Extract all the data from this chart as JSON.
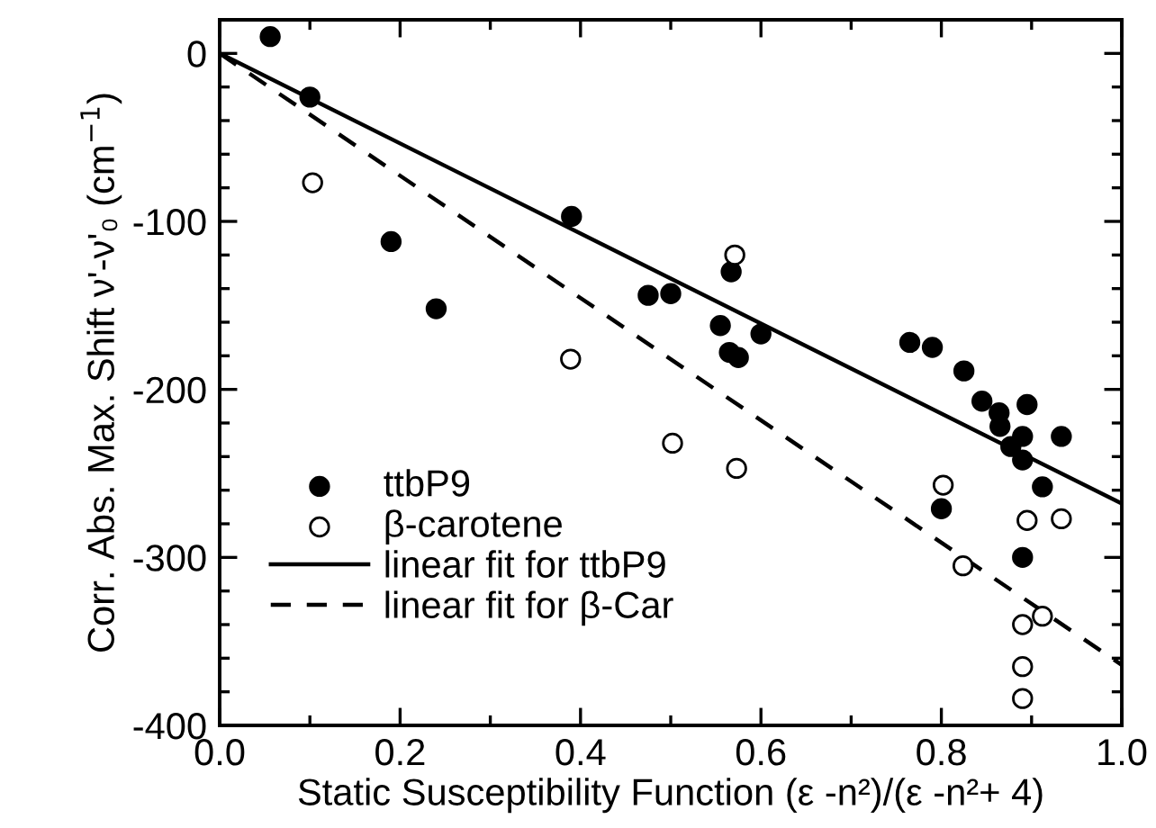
{
  "chart_data": {
    "type": "scatter",
    "xlabel": "Static Susceptibility Function (ε -n²)/(ε -n²+ 4)",
    "ylabel": "Corr. Abs. Max. Shift ν'-ν'₀ (cm$^{−1}$)",
    "xlim": [
      0.0,
      1.0
    ],
    "ylim": [
      -400,
      20
    ],
    "xticks": [
      {
        "value": 0.0,
        "label": "0.0"
      },
      {
        "value": 0.1,
        "label": null
      },
      {
        "value": 0.2,
        "label": "0.2"
      },
      {
        "value": 0.3,
        "label": null
      },
      {
        "value": 0.4,
        "label": "0.4"
      },
      {
        "value": 0.5,
        "label": null
      },
      {
        "value": 0.6,
        "label": "0.6"
      },
      {
        "value": 0.7,
        "label": null
      },
      {
        "value": 0.8,
        "label": "0.8"
      },
      {
        "value": 0.9,
        "label": null
      },
      {
        "value": 1.0,
        "label": "1.0"
      }
    ],
    "yticks": [
      -400,
      {
        "value": -380,
        "label": null
      },
      {
        "value": -360,
        "label": null
      },
      {
        "value": -340,
        "label": null
      },
      {
        "value": -320,
        "label": null
      },
      -300,
      {
        "value": -280,
        "label": null
      },
      {
        "value": -260,
        "label": null
      },
      {
        "value": -240,
        "label": null
      },
      {
        "value": -220,
        "label": null
      },
      -200,
      {
        "value": -180,
        "label": null
      },
      {
        "value": -160,
        "label": null
      },
      {
        "value": -140,
        "label": null
      },
      {
        "value": -120,
        "label": null
      },
      -100,
      {
        "value": -80,
        "label": null
      },
      {
        "value": -60,
        "label": null
      },
      {
        "value": -40,
        "label": null
      },
      {
        "value": -20,
        "label": null
      },
      0
    ],
    "grid": false,
    "legend": "bottom left",
    "series": [
      {
        "name": "ttbP9",
        "marker": "circle",
        "color": "#000000",
        "x": [
          0.056,
          0.1,
          0.19,
          0.24,
          0.39,
          0.475,
          0.5,
          0.555,
          0.567,
          0.565,
          0.575,
          0.6,
          0.765,
          0.79,
          0.825,
          0.845,
          0.864,
          0.895,
          0.865,
          0.89,
          0.933,
          0.877,
          0.89,
          0.912,
          0.8,
          0.89
        ],
        "values": [
          10,
          -26,
          -112,
          -152,
          -97,
          -144,
          -143,
          -162,
          -130,
          -178,
          -181,
          -167,
          -172,
          -175,
          -189,
          -207,
          -214,
          -209,
          -222,
          -228,
          -228,
          -234,
          -242,
          -258,
          -271,
          -300
        ]
      },
      {
        "name": "β-carotene",
        "marker": "circle",
        "color": "#ffffff",
        "x": [
          0.103,
          0.389,
          0.571,
          0.502,
          0.573,
          0.802,
          0.824,
          0.895,
          0.933,
          0.912,
          0.89,
          0.89,
          0.89
        ],
        "values": [
          -77,
          -182,
          -120,
          -232,
          -247,
          -257,
          -305,
          -278,
          -277,
          -335,
          -340,
          -365,
          -384
        ]
      },
      {
        "name": "linear fit for ttbP9",
        "type": "line",
        "line_style": "solid",
        "color": "#000000",
        "x": [
          0.0,
          1.0
        ],
        "values": [
          0,
          -268
        ]
      },
      {
        "name": "linear fit for β-Car",
        "type": "line",
        "line_style": "dashed",
        "color": "#000000",
        "x": [
          0.0,
          1.0
        ],
        "values": [
          0,
          -364
        ]
      }
    ]
  }
}
